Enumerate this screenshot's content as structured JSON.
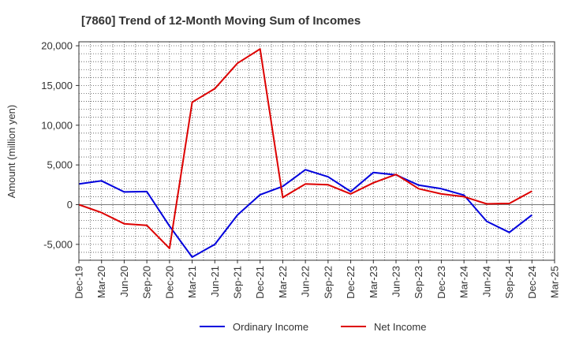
{
  "chart_data": {
    "type": "line",
    "title": "[7860]  Trend of 12-Month Moving Sum of Incomes",
    "xlabel": "",
    "ylabel": "Amount (million yen)",
    "ylim": [
      -7000,
      20500
    ],
    "yticks": [
      -5000,
      0,
      5000,
      10000,
      15000,
      20000
    ],
    "ytick_labels": [
      "-5,000",
      "0",
      "5,000",
      "10,000",
      "15,000",
      "20,000"
    ],
    "categories": [
      "Dec-19",
      "Mar-20",
      "Jun-20",
      "Sep-20",
      "Dec-20",
      "Mar-21",
      "Jun-21",
      "Sep-21",
      "Dec-21",
      "Mar-22",
      "Jun-22",
      "Sep-22",
      "Dec-22",
      "Mar-23",
      "Jun-23",
      "Sep-23",
      "Dec-23",
      "Mar-24",
      "Jun-24",
      "Sep-24",
      "Dec-24",
      "Mar-25"
    ],
    "grid": true,
    "legend_position": "bottom",
    "series": [
      {
        "name": "Ordinary Income",
        "color": "#0000dd",
        "values": [
          2600,
          3000,
          1600,
          1650,
          -2700,
          -6600,
          -5000,
          -1300,
          1250,
          2300,
          4400,
          3500,
          1650,
          4050,
          3750,
          2450,
          2000,
          1200,
          -2100,
          -3500,
          -1300,
          null
        ]
      },
      {
        "name": "Net Income",
        "color": "#dd0000",
        "values": [
          0,
          -1000,
          -2400,
          -2600,
          -5500,
          12900,
          14600,
          17800,
          19600,
          900,
          2600,
          2500,
          1350,
          2750,
          3800,
          2000,
          1350,
          1000,
          100,
          150,
          1700,
          null
        ]
      }
    ]
  }
}
